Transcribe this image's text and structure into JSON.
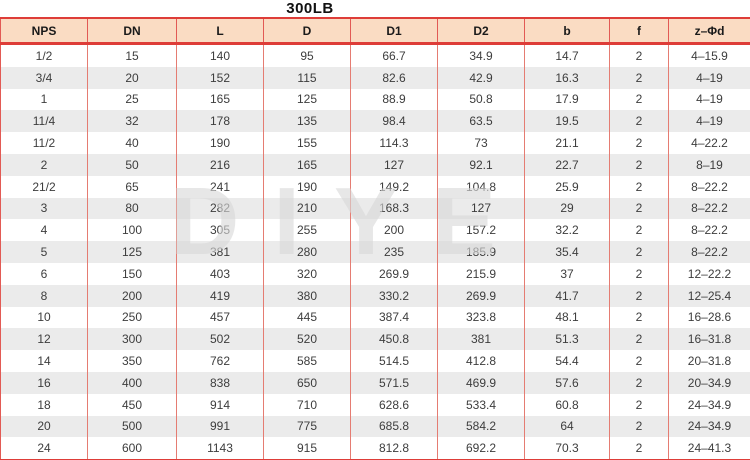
{
  "title": "300LB",
  "watermark_text": "DIYE",
  "colors": {
    "header_bg": "#fadcc3",
    "grid_red": "#e25a54",
    "rule_red": "#de3d38",
    "zebra_gray": "#ebebeb",
    "cell_text": "#3d3d3d",
    "watermark_gray": "#d9d9d9"
  },
  "chart_data": {
    "type": "table",
    "title": "300LB",
    "columns": [
      "NPS",
      "DN",
      "L",
      "D",
      "D1",
      "D2",
      "b",
      "f",
      "z–Φd"
    ],
    "rows": [
      [
        "1/2",
        "15",
        "140",
        "95",
        "66.7",
        "34.9",
        "14.7",
        "2",
        "4–15.9"
      ],
      [
        "3/4",
        "20",
        "152",
        "115",
        "82.6",
        "42.9",
        "16.3",
        "2",
        "4–19"
      ],
      [
        "1",
        "25",
        "165",
        "125",
        "88.9",
        "50.8",
        "17.9",
        "2",
        "4–19"
      ],
      [
        "11/4",
        "32",
        "178",
        "135",
        "98.4",
        "63.5",
        "19.5",
        "2",
        "4–19"
      ],
      [
        "11/2",
        "40",
        "190",
        "155",
        "114.3",
        "73",
        "21.1",
        "2",
        "4–22.2"
      ],
      [
        "2",
        "50",
        "216",
        "165",
        "127",
        "92.1",
        "22.7",
        "2",
        "8–19"
      ],
      [
        "21/2",
        "65",
        "241",
        "190",
        "149.2",
        "104.8",
        "25.9",
        "2",
        "8–22.2"
      ],
      [
        "3",
        "80",
        "282",
        "210",
        "168.3",
        "127",
        "29",
        "2",
        "8–22.2"
      ],
      [
        "4",
        "100",
        "305",
        "255",
        "200",
        "157.2",
        "32.2",
        "2",
        "8–22.2"
      ],
      [
        "5",
        "125",
        "381",
        "280",
        "235",
        "185.9",
        "35.4",
        "2",
        "8–22.2"
      ],
      [
        "6",
        "150",
        "403",
        "320",
        "269.9",
        "215.9",
        "37",
        "2",
        "12–22.2"
      ],
      [
        "8",
        "200",
        "419",
        "380",
        "330.2",
        "269.9",
        "41.7",
        "2",
        "12–25.4"
      ],
      [
        "10",
        "250",
        "457",
        "445",
        "387.4",
        "323.8",
        "48.1",
        "2",
        "16–28.6"
      ],
      [
        "12",
        "300",
        "502",
        "520",
        "450.8",
        "381",
        "51.3",
        "2",
        "16–31.8"
      ],
      [
        "14",
        "350",
        "762",
        "585",
        "514.5",
        "412.8",
        "54.4",
        "2",
        "20–31.8"
      ],
      [
        "16",
        "400",
        "838",
        "650",
        "571.5",
        "469.9",
        "57.6",
        "2",
        "20–34.9"
      ],
      [
        "18",
        "450",
        "914",
        "710",
        "628.6",
        "533.4",
        "60.8",
        "2",
        "24–34.9"
      ],
      [
        "20",
        "500",
        "991",
        "775",
        "685.8",
        "584.2",
        "64",
        "2",
        "24–34.9"
      ],
      [
        "24",
        "600",
        "1143",
        "915",
        "812.8",
        "692.2",
        "70.3",
        "2",
        "24–41.3"
      ]
    ]
  }
}
